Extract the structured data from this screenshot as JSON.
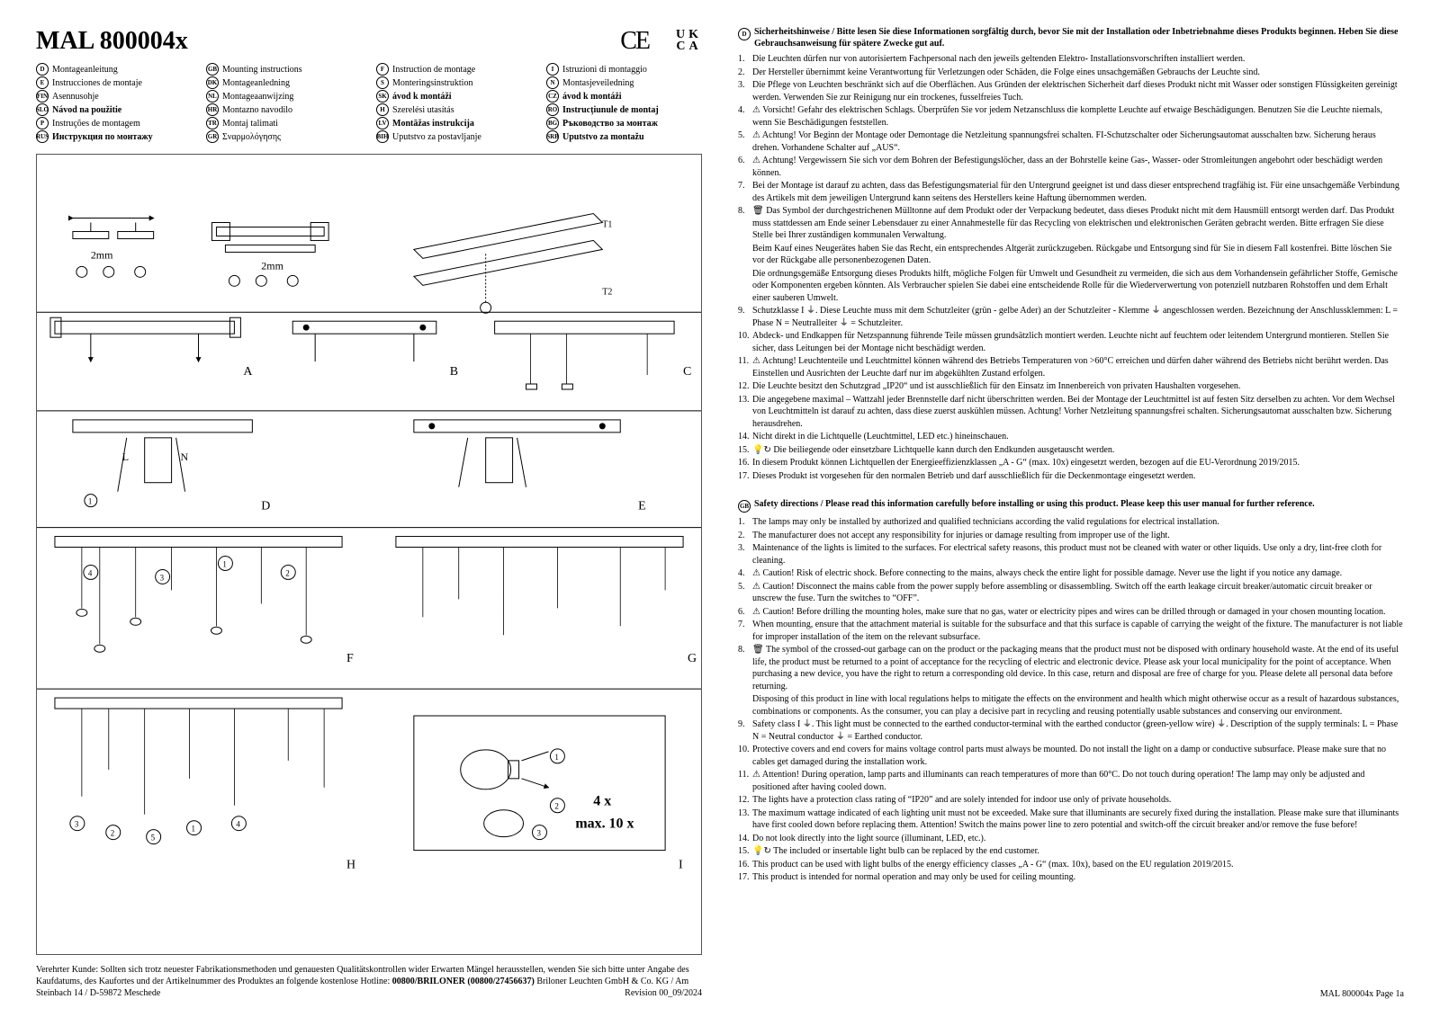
{
  "header": {
    "title": "MAL 800004x",
    "ce": "CE",
    "ukca_top": "UK",
    "ukca_bottom": "CA"
  },
  "languages": [
    {
      "code": "D",
      "label": "Montageanleitung",
      "bold": false
    },
    {
      "code": "GB",
      "label": "Mounting instructions",
      "bold": false
    },
    {
      "code": "F",
      "label": "Instruction de montage",
      "bold": false
    },
    {
      "code": "I",
      "label": "Istruzioni di montaggio",
      "bold": false
    },
    {
      "code": "E",
      "label": "Instrucciones de montaje",
      "bold": false
    },
    {
      "code": "DK",
      "label": "Montageanledning",
      "bold": false
    },
    {
      "code": "S",
      "label": "Monteringsinstruktion",
      "bold": false
    },
    {
      "code": "N",
      "label": "Montasjeveiledning",
      "bold": false
    },
    {
      "code": "FIN",
      "label": "Asennusohje",
      "bold": false
    },
    {
      "code": "NL",
      "label": "Montageaanwijzing",
      "bold": false
    },
    {
      "code": "SK",
      "label": "ávod k montáži",
      "bold": true
    },
    {
      "code": "CZ",
      "label": "ávod k montáži",
      "bold": true
    },
    {
      "code": "SLO",
      "label": "Návod na použitie",
      "bold": true
    },
    {
      "code": "HR",
      "label": "Montazno navodilo",
      "bold": false
    },
    {
      "code": "H",
      "label": "Szerelési utasítás",
      "bold": false
    },
    {
      "code": "RO",
      "label": "Instrucțiunule de montaj",
      "bold": true
    },
    {
      "code": "P",
      "label": "Instruções de montagem",
      "bold": false
    },
    {
      "code": "TR",
      "label": "Montaj talimati",
      "bold": false
    },
    {
      "code": "LV",
      "label": "Montāžas instrukcija",
      "bold": true
    },
    {
      "code": "BG",
      "label": "Ръководство за монтаж",
      "bold": true
    },
    {
      "code": "RUS",
      "label": "Инструкция по монтажу",
      "bold": true
    },
    {
      "code": "GR",
      "label": "Σναρμολόγησης",
      "bold": false
    },
    {
      "code": "BIH",
      "label": "Uputstvo za postavljanje",
      "bold": false
    },
    {
      "code": "SRB",
      "label": "Uputstvo za montažu",
      "bold": true
    }
  ],
  "diagram": {
    "panel_labels": [
      "A",
      "B",
      "C",
      "D",
      "E",
      "F",
      "G",
      "H",
      "I"
    ],
    "callouts": [
      "①",
      "②",
      "③",
      "④",
      "⑤"
    ],
    "dims": [
      "2mm",
      "2mm"
    ],
    "wires": [
      "L",
      "N"
    ],
    "arrows": [
      "T1",
      "T2"
    ],
    "qty_line1": "4 x",
    "qty_line2": "max. 10 x"
  },
  "footer": {
    "text1": "Verehrter Kunde: Sollten sich trotz neuester Fabrikationsmethoden und genauesten Qualitätskontrollen wider Erwarten Mängel herausstellen, wenden Sie sich bitte unter Angabe des Kaufdatums, des Kaufortes und der Artikelnummer des Produktes an folgende kostenlose Hotline: ",
    "hotline": "00800/BRILONER (00800/27456637)",
    "addr": " Briloner Leuchten GmbH & Co. KG / Am Steinbach 14 / D-59872 Meschede",
    "revision": "Revision 00_09/2024"
  },
  "sections": {
    "de": {
      "code": "D",
      "header": "Sicherheitshinweise / Bitte lesen Sie diese Informationen sorgfältig durch, bevor Sie mit der Installation oder Inbetriebnahme dieses Produkts beginnen. Heben Sie diese Gebrauchsanweisung für spätere Zwecke gut auf.",
      "items": [
        "Die Leuchten dürfen nur von autorisiertem Fachpersonal nach den jeweils geltenden Elektro- Installationsvorschriften installiert werden.",
        "Der Hersteller übernimmt keine Verantwortung für Verletzungen oder Schäden, die Folge eines unsachgemäßen Gebrauchs der Leuchte sind.",
        "Die Pflege von Leuchten beschränkt sich auf die Oberflächen. Aus Gründen der elektrischen Sicherheit darf dieses Produkt nicht mit Wasser oder sonstigen Flüssigkeiten gereinigt werden. Verwenden Sie zur Reinigung nur ein trockenes, fusselfreies Tuch.",
        "⚠ Vorsicht! Gefahr des elektrischen Schlags. Überprüfen Sie vor jedem Netzanschluss die komplette Leuchte auf etwaige Beschädigungen. Benutzen Sie die Leuchte niemals, wenn Sie Beschädigungen feststellen.",
        "⚠ Achtung! Vor Beginn der Montage oder Demontage die Netzleitung spannungsfrei schalten. FI-Schutzschalter oder Sicherungsautomat ausschalten bzw. Sicherung heraus drehen. Vorhandene Schalter auf „AUS“.",
        "⚠ Achtung! Vergewissern Sie sich vor dem Bohren der Befestigungslöcher, dass an der Bohrstelle keine Gas-, Wasser- oder Stromleitungen angebohrt oder beschädigt werden können.",
        "Bei der Montage ist darauf zu achten, dass das Befestigungsmaterial für den Untergrund geeignet ist und dass dieser entsprechend tragfähig ist. Für eine unsachgemäße Verbindung des Artikels mit dem jeweiligen Untergrund kann seitens des Herstellers keine Haftung übernommen werden.",
        "🗑 Das Symbol der durchgestrichenen Mülltonne auf dem Produkt oder der Verpackung bedeutet, dass dieses Produkt nicht mit dem Hausmüll entsorgt werden darf. Das Produkt muss stattdessen am Ende seiner Lebensdauer zu einer Annahmestelle für das Recycling von elektrischen und elektronischen Geräten gebracht werden. Bitte erfragen Sie diese Stelle bei Ihrer zuständigen kommunalen Verwaltung.\nBeim Kauf eines Neugerätes haben Sie das Recht, ein entsprechendes Altgerät zurückzugeben. Rückgabe und Entsorgung sind für Sie in diesem Fall kostenfrei. Bitte löschen Sie vor der Rückgabe alle personenbezogenen Daten.\nDie ordnungsgemäße Entsorgung dieses Produkts hilft, mögliche Folgen für Umwelt und Gesundheit zu vermeiden, die sich aus dem Vorhandensein gefährlicher Stoffe, Gemische oder Komponenten ergeben könnten. Als Verbraucher spielen Sie dabei eine entscheidende Rolle für die Wiederverwertung von potenziell nutzbaren Rohstoffen und dem Erhalt einer sauberen Umwelt.",
        "Schutzklasse I ⏚. Diese Leuchte muss mit dem Schutzleiter (grün - gelbe Ader) an der Schutzleiter - Klemme ⏚ angeschlossen werden. Bezeichnung der Anschlussklemmen: L = Phase  N = Neutralleiter  ⏚ = Schutzleiter.",
        "Abdeck- und Endkappen für Netzspannung führende Teile müssen grundsätzlich montiert werden. Leuchte nicht auf feuchtem oder leitendem Untergrund montieren. Stellen Sie sicher, dass Leitungen bei der Montage nicht beschädigt werden.",
        "⚠ Achtung! Leuchtenteile und Leuchtmittel können während des Betriebs Temperaturen von >60°C erreichen und dürfen daher während des Betriebs nicht berührt werden. Das Einstellen und Ausrichten der Leuchte darf nur im abgekühlten Zustand erfolgen.",
        "Die Leuchte besitzt den Schutzgrad „IP20“ und ist ausschließlich für den Einsatz im Innenbereich von privaten Haushalten vorgesehen.",
        "Die angegebene maximal – Wattzahl jeder Brennstelle darf nicht überschritten werden. Bei der Montage der Leuchtmittel ist auf festen Sitz derselben zu achten. Vor dem Wechsel von Leuchtmitteln ist darauf zu achten, dass diese zuerst auskühlen müssen. Achtung! Vorher Netzleitung spannungsfrei schalten. Sicherungsautomat ausschalten bzw. Sicherung herausdrehen.",
        "Nicht direkt in die Lichtquelle (Leuchtmittel, LED etc.) hineinschauen.",
        "💡↻ Die beiliegende oder einsetzbare Lichtquelle kann durch den Endkunden ausgetauscht werden.",
        "In diesem Produkt können Lichtquellen der Energieeffizienzklassen „A - G“ (max. 10x) eingesetzt werden, bezogen auf die EU-Verordnung 2019/2015.",
        "Dieses Produkt ist vorgesehen für den normalen Betrieb und darf ausschließlich für die Deckenmontage eingesetzt werden."
      ]
    },
    "gb": {
      "code": "GB",
      "header": "Safety directions / Please read this information carefully before installing or using this product. Please keep this user manual for further reference.",
      "items": [
        "The lamps may only be installed by authorized and qualified technicians according the valid regulations for electrical installation.",
        "The manufacturer does not accept any responsibility for injuries or damage resulting from improper use of the light.",
        "Maintenance of the lights is limited to the surfaces. For electrical safety reasons, this product must not be cleaned with water or other liquids. Use only a dry, lint-free cloth for cleaning.",
        "⚠ Caution! Risk of electric shock. Before connecting to the mains, always check the entire light for possible damage. Never use the light if you notice any damage.",
        "⚠ Caution! Disconnect the mains cable from the power supply before assembling or disassembling. Switch off the earth leakage circuit breaker/automatic circuit breaker or unscrew the fuse. Turn the switches to “OFF”.",
        "⚠ Caution! Before drilling the mounting holes, make sure that no gas, water or electricity pipes and wires can be drilled through or damaged in your chosen mounting location.",
        "When mounting, ensure that the attachment material is suitable for the subsurface and that this surface is capable of carrying the weight of the fixture. The manufacturer is not liable for improper installation of the item on the relevant subsurface.",
        "🗑 The symbol of the crossed-out garbage can on the product or the packaging means that the product must not be disposed with ordinary household waste. At the end of its useful life, the product must be returned to a point of acceptance for the recycling of electric and electronic device. Please ask your local municipality for the point of acceptance. When purchasing a new device, you have the right to return a corresponding old device. In this case, return and disposal are free of charge for you. Please delete all personal data before returning.\nDisposing of this product in line with local regulations helps to mitigate the effects on the environment and health which might otherwise occur as a result of hazardous substances, combinations or components. As the consumer, you can play a decisive part in recycling and reusing potentially usable substances and conserving our environment.",
        "Safety class I ⏚. This light must be connected to the earthed conductor-terminal with the earthed conductor (green-yellow wire) ⏚. Description of the supply terminals: L = Phase  N = Neutral conductor  ⏚ = Earthed conductor.",
        "Protective covers and end covers for mains voltage control parts must always be mounted. Do not install the light on a damp or conductive subsurface. Please make sure that no cables get damaged during the installation work.",
        "⚠ Attention! During operation, lamp parts and illuminants can reach temperatures of more than 60°C. Do not touch during operation! The lamp may only be adjusted and positioned after having cooled down.",
        "The lights have a protection class rating of “IP20” and are solely intended for indoor use only of private households.",
        "The maximum wattage indicated of each lighting unit must not be exceeded. Make sure that illuminants are securely fixed during the installation. Please make sure that illuminants have first cooled down before replacing them. Attention! Switch the mains power line to zero potential and switch-off the circuit breaker and/or remove the fuse before!",
        "Do not look directly into the light source (illuminant, LED, etc.).",
        "💡↻ The included or insertable light bulb can be replaced by the end customer.",
        "This product can be used with light bulbs of the energy efficiency classes „A - G“ (max. 10x), based on the EU regulation 2019/2015.",
        "This product is intended for normal operation and may only be used for ceiling mounting."
      ]
    }
  },
  "page_num": "MAL 800004x Page 1a"
}
